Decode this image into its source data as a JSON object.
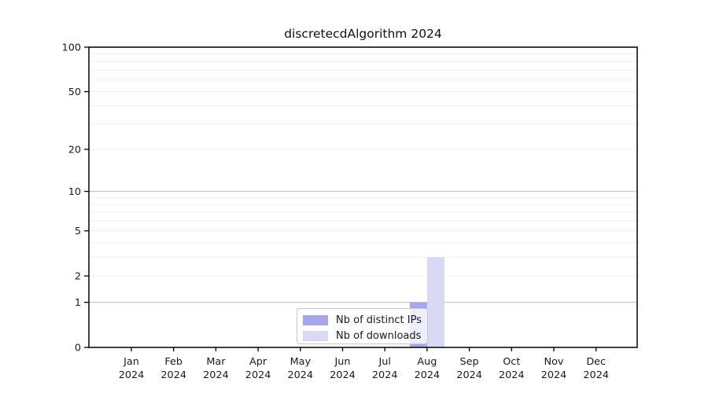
{
  "chart_data": {
    "type": "bar",
    "title": "discretecdAlgorithm 2024",
    "x": {
      "categories": [
        "Jan",
        "Feb",
        "Mar",
        "Apr",
        "May",
        "Jun",
        "Jul",
        "Aug",
        "Sep",
        "Oct",
        "Nov",
        "Dec"
      ],
      "year_label": "2024"
    },
    "y": {
      "scale": "log1p",
      "lim": [
        0,
        100
      ],
      "ticks": [
        0,
        1,
        2,
        5,
        10,
        20,
        50,
        100
      ],
      "decade_ticks": [
        1,
        10,
        100
      ],
      "minor_ticks": [
        3,
        4,
        6,
        7,
        8,
        9,
        30,
        40,
        60,
        70,
        80,
        90
      ]
    },
    "series": [
      {
        "name": "Nb of distinct IPs",
        "color": "#a6a6ec",
        "values": [
          0,
          0,
          0,
          0,
          0,
          0,
          0,
          1,
          0,
          0,
          0,
          0
        ]
      },
      {
        "name": "Nb of downloads",
        "color": "#d9d9f6",
        "values": [
          0,
          0,
          0,
          0,
          0,
          0,
          0,
          3,
          0,
          0,
          0,
          0
        ]
      }
    ],
    "legend": {
      "position": "bottom-center",
      "entries": [
        "Nb of distinct IPs",
        "Nb of downloads"
      ]
    },
    "grid": "horizontal",
    "colors": {
      "axis": "#000000",
      "grid_decade": "#c9c9c9",
      "grid_minor": "#efefef",
      "tick_text": "#1a1a1a",
      "background": "#ffffff"
    }
  }
}
